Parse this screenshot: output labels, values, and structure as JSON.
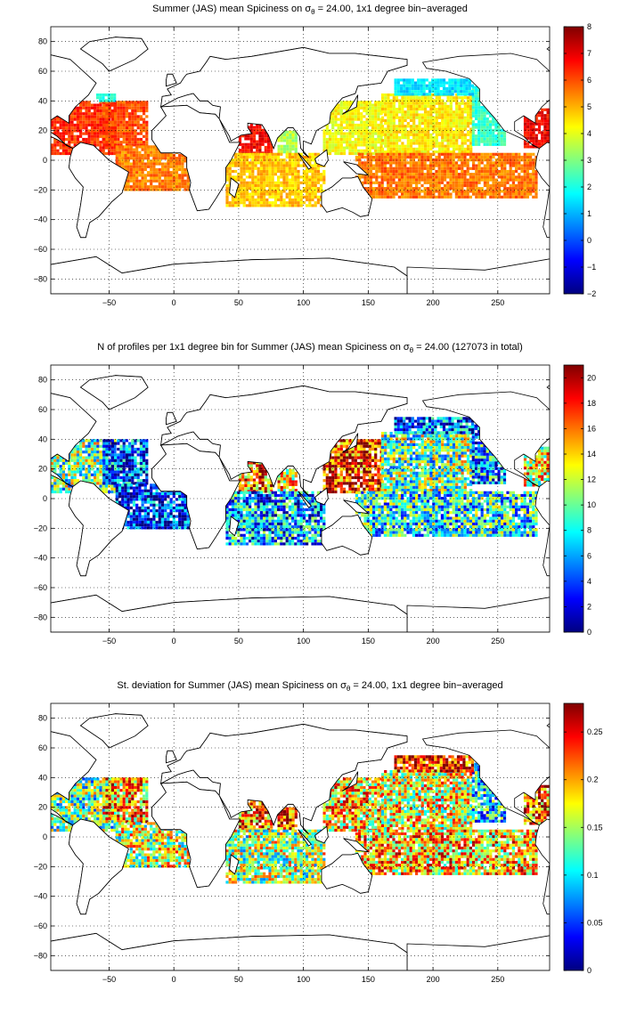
{
  "chart_data": [
    {
      "type": "heatmap",
      "title": "Summer (JAS) mean Spiciness on σθ = 24.00, 1x1 degree bin−averaged",
      "title_parts": {
        "pre": "Summer (JAS) mean Spiciness on σ",
        "sub": "θ",
        "post": " = 24.00, 1x1 degree bin−averaged"
      },
      "xlim": [
        -95,
        290
      ],
      "ylim": [
        -90,
        90
      ],
      "xticks": [
        -50,
        0,
        50,
        100,
        150,
        200,
        250
      ],
      "xtick_labels": [
        "−50",
        "0",
        "50",
        "100",
        "150",
        "200",
        "250"
      ],
      "yticks": [
        80,
        60,
        40,
        20,
        0,
        -20,
        -40,
        -60,
        -80
      ],
      "ytick_labels": [
        "80",
        "60",
        "40",
        "20",
        "0",
        "−20",
        "−40",
        "−60",
        "−80"
      ],
      "grid": true,
      "colorbar": {
        "min": -2,
        "max": 8,
        "ticks": [
          8,
          7,
          6,
          5,
          4,
          3,
          2,
          1,
          0,
          -1,
          -2
        ],
        "tick_labels": [
          "8",
          "7",
          "6",
          "5",
          "4",
          "3",
          "2",
          "1",
          "0",
          "−1",
          "−2"
        ]
      },
      "regions": [
        {
          "name": "north-atlantic",
          "x0": -95,
          "x1": -45,
          "y0": 5,
          "y1": 40,
          "value": 6.3
        },
        {
          "name": "north-atlantic-east",
          "x0": -55,
          "x1": -20,
          "y0": 10,
          "y1": 40,
          "value": 6.0
        },
        {
          "name": "north-atlantic-north-edge",
          "x0": -60,
          "x1": -45,
          "y0": 40,
          "y1": 45,
          "value": 2.0
        },
        {
          "name": "tropical-atlantic",
          "x0": -45,
          "x1": 10,
          "y0": -20,
          "y1": 10,
          "value": 5.5
        },
        {
          "name": "arabian-sea",
          "x0": 50,
          "x1": 75,
          "y0": 5,
          "y1": 25,
          "value": 6.8
        },
        {
          "name": "bay-of-bengal",
          "x0": 80,
          "x1": 95,
          "y0": 5,
          "y1": 20,
          "value": 3.5
        },
        {
          "name": "indian-ocean",
          "x0": 40,
          "x1": 115,
          "y0": -30,
          "y1": 5,
          "value": 4.8
        },
        {
          "name": "west-pacific",
          "x0": 115,
          "x1": 160,
          "y0": 5,
          "y1": 40,
          "value": 4.2
        },
        {
          "name": "north-pacific",
          "x0": 160,
          "x1": 230,
          "y0": 5,
          "y1": 45,
          "value": 4.4
        },
        {
          "name": "east-north-pacific",
          "x0": 230,
          "x1": 255,
          "y0": 10,
          "y1": 50,
          "value": 2.3
        },
        {
          "name": "subpolar-north-pacific",
          "x0": 170,
          "x1": 230,
          "y0": 45,
          "y1": 55,
          "value": 1.5
        },
        {
          "name": "equatorial-pacific",
          "x0": 140,
          "x1": 280,
          "y0": -25,
          "y1": 5,
          "value": 5.6
        },
        {
          "name": "north-atlantic-right",
          "x0": 270,
          "x1": 290,
          "y0": 10,
          "y1": 35,
          "value": 6.8
        }
      ]
    },
    {
      "type": "heatmap",
      "title": "N of profiles per 1x1 degree bin for Summer (JAS) mean Spiciness on σθ = 24.00 (127073 in total)",
      "title_parts": {
        "pre": "N of profiles per 1x1 degree bin for Summer (JAS) mean Spiciness on σ",
        "sub": "θ",
        "post": " = 24.00 (127073 in total)"
      },
      "total_profiles": 127073,
      "xlim": [
        -95,
        290
      ],
      "ylim": [
        -90,
        90
      ],
      "xticks": [
        -50,
        0,
        50,
        100,
        150,
        200,
        250
      ],
      "xtick_labels": [
        "−50",
        "0",
        "50",
        "100",
        "150",
        "200",
        "250"
      ],
      "yticks": [
        80,
        60,
        40,
        20,
        0,
        -20,
        -40,
        -60,
        -80
      ],
      "ytick_labels": [
        "80",
        "60",
        "40",
        "20",
        "0",
        "−20",
        "−40",
        "−60",
        "−80"
      ],
      "grid": true,
      "colorbar": {
        "min": 0,
        "max": 21,
        "ticks": [
          20,
          18,
          16,
          14,
          12,
          10,
          8,
          6,
          4,
          2,
          0
        ],
        "tick_labels": [
          "20",
          "18",
          "16",
          "14",
          "12",
          "10",
          "8",
          "6",
          "4",
          "2",
          "0"
        ]
      },
      "regions": [
        {
          "name": "north-atlantic",
          "x0": -95,
          "x1": -45,
          "y0": 5,
          "y1": 40,
          "value": 10
        },
        {
          "name": "north-atlantic-east",
          "x0": -55,
          "x1": -20,
          "y0": 10,
          "y1": 40,
          "value": 4
        },
        {
          "name": "tropical-atlantic",
          "x0": -45,
          "x1": 10,
          "y0": -20,
          "y1": 10,
          "value": 3
        },
        {
          "name": "arabian-sea",
          "x0": 50,
          "x1": 75,
          "y0": 5,
          "y1": 25,
          "value": 16
        },
        {
          "name": "bay-of-bengal",
          "x0": 80,
          "x1": 95,
          "y0": 5,
          "y1": 20,
          "value": 14
        },
        {
          "name": "indian-ocean",
          "x0": 40,
          "x1": 115,
          "y0": -30,
          "y1": 5,
          "value": 6
        },
        {
          "name": "west-pacific",
          "x0": 115,
          "x1": 160,
          "y0": 5,
          "y1": 40,
          "value": 18
        },
        {
          "name": "north-pacific",
          "x0": 160,
          "x1": 230,
          "y0": 5,
          "y1": 45,
          "value": 10
        },
        {
          "name": "east-north-pacific",
          "x0": 230,
          "x1": 255,
          "y0": 10,
          "y1": 50,
          "value": 6
        },
        {
          "name": "subpolar-north-pacific",
          "x0": 170,
          "x1": 230,
          "y0": 45,
          "y1": 55,
          "value": 4
        },
        {
          "name": "equatorial-pacific",
          "x0": 140,
          "x1": 280,
          "y0": -25,
          "y1": 5,
          "value": 8
        },
        {
          "name": "north-atlantic-right",
          "x0": 270,
          "x1": 290,
          "y0": 10,
          "y1": 35,
          "value": 13
        }
      ]
    },
    {
      "type": "heatmap",
      "title": "St. deviation for Summer (JAS) mean Spiciness on σθ = 24.00, 1x1 degree bin−averaged",
      "title_parts": {
        "pre": "St. deviation for Summer (JAS) mean Spiciness on σ",
        "sub": "θ",
        "post": " = 24.00, 1x1 degree bin−averaged"
      },
      "xlim": [
        -95,
        290
      ],
      "ylim": [
        -90,
        90
      ],
      "xticks": [
        -50,
        0,
        50,
        100,
        150,
        200,
        250
      ],
      "xtick_labels": [
        "−50",
        "0",
        "50",
        "100",
        "150",
        "200",
        "250"
      ],
      "yticks": [
        80,
        60,
        40,
        20,
        0,
        -20,
        -40,
        -60,
        -80
      ],
      "ytick_labels": [
        "80",
        "60",
        "40",
        "20",
        "0",
        "−20",
        "−40",
        "−60",
        "−80"
      ],
      "grid": true,
      "colorbar": {
        "min": 0,
        "max": 0.28,
        "ticks": [
          0.25,
          0.2,
          0.15,
          0.1,
          0.05,
          0
        ],
        "tick_labels": [
          "0.25",
          "0.2",
          "0.15",
          "0.1",
          "0.05",
          "0"
        ]
      },
      "regions": [
        {
          "name": "north-atlantic",
          "x0": -95,
          "x1": -45,
          "y0": 5,
          "y1": 40,
          "value": 0.13
        },
        {
          "name": "north-atlantic-east",
          "x0": -55,
          "x1": -20,
          "y0": 10,
          "y1": 40,
          "value": 0.2
        },
        {
          "name": "tropical-atlantic",
          "x0": -45,
          "x1": 10,
          "y0": -20,
          "y1": 10,
          "value": 0.16
        },
        {
          "name": "arabian-sea",
          "x0": 50,
          "x1": 75,
          "y0": 5,
          "y1": 25,
          "value": 0.22
        },
        {
          "name": "bay-of-bengal",
          "x0": 80,
          "x1": 95,
          "y0": 5,
          "y1": 20,
          "value": 0.24
        },
        {
          "name": "indian-ocean",
          "x0": 40,
          "x1": 115,
          "y0": -30,
          "y1": 5,
          "value": 0.15
        },
        {
          "name": "west-pacific",
          "x0": 115,
          "x1": 160,
          "y0": 5,
          "y1": 40,
          "value": 0.19
        },
        {
          "name": "north-pacific",
          "x0": 160,
          "x1": 230,
          "y0": 5,
          "y1": 45,
          "value": 0.17
        },
        {
          "name": "east-north-pacific",
          "x0": 230,
          "x1": 255,
          "y0": 10,
          "y1": 50,
          "value": 0.1
        },
        {
          "name": "subpolar-north-pacific",
          "x0": 170,
          "x1": 230,
          "y0": 45,
          "y1": 55,
          "value": 0.24
        },
        {
          "name": "equatorial-pacific",
          "x0": 140,
          "x1": 280,
          "y0": -25,
          "y1": 5,
          "value": 0.19
        },
        {
          "name": "north-atlantic-right",
          "x0": 270,
          "x1": 290,
          "y0": 10,
          "y1": 35,
          "value": 0.22
        }
      ]
    }
  ]
}
